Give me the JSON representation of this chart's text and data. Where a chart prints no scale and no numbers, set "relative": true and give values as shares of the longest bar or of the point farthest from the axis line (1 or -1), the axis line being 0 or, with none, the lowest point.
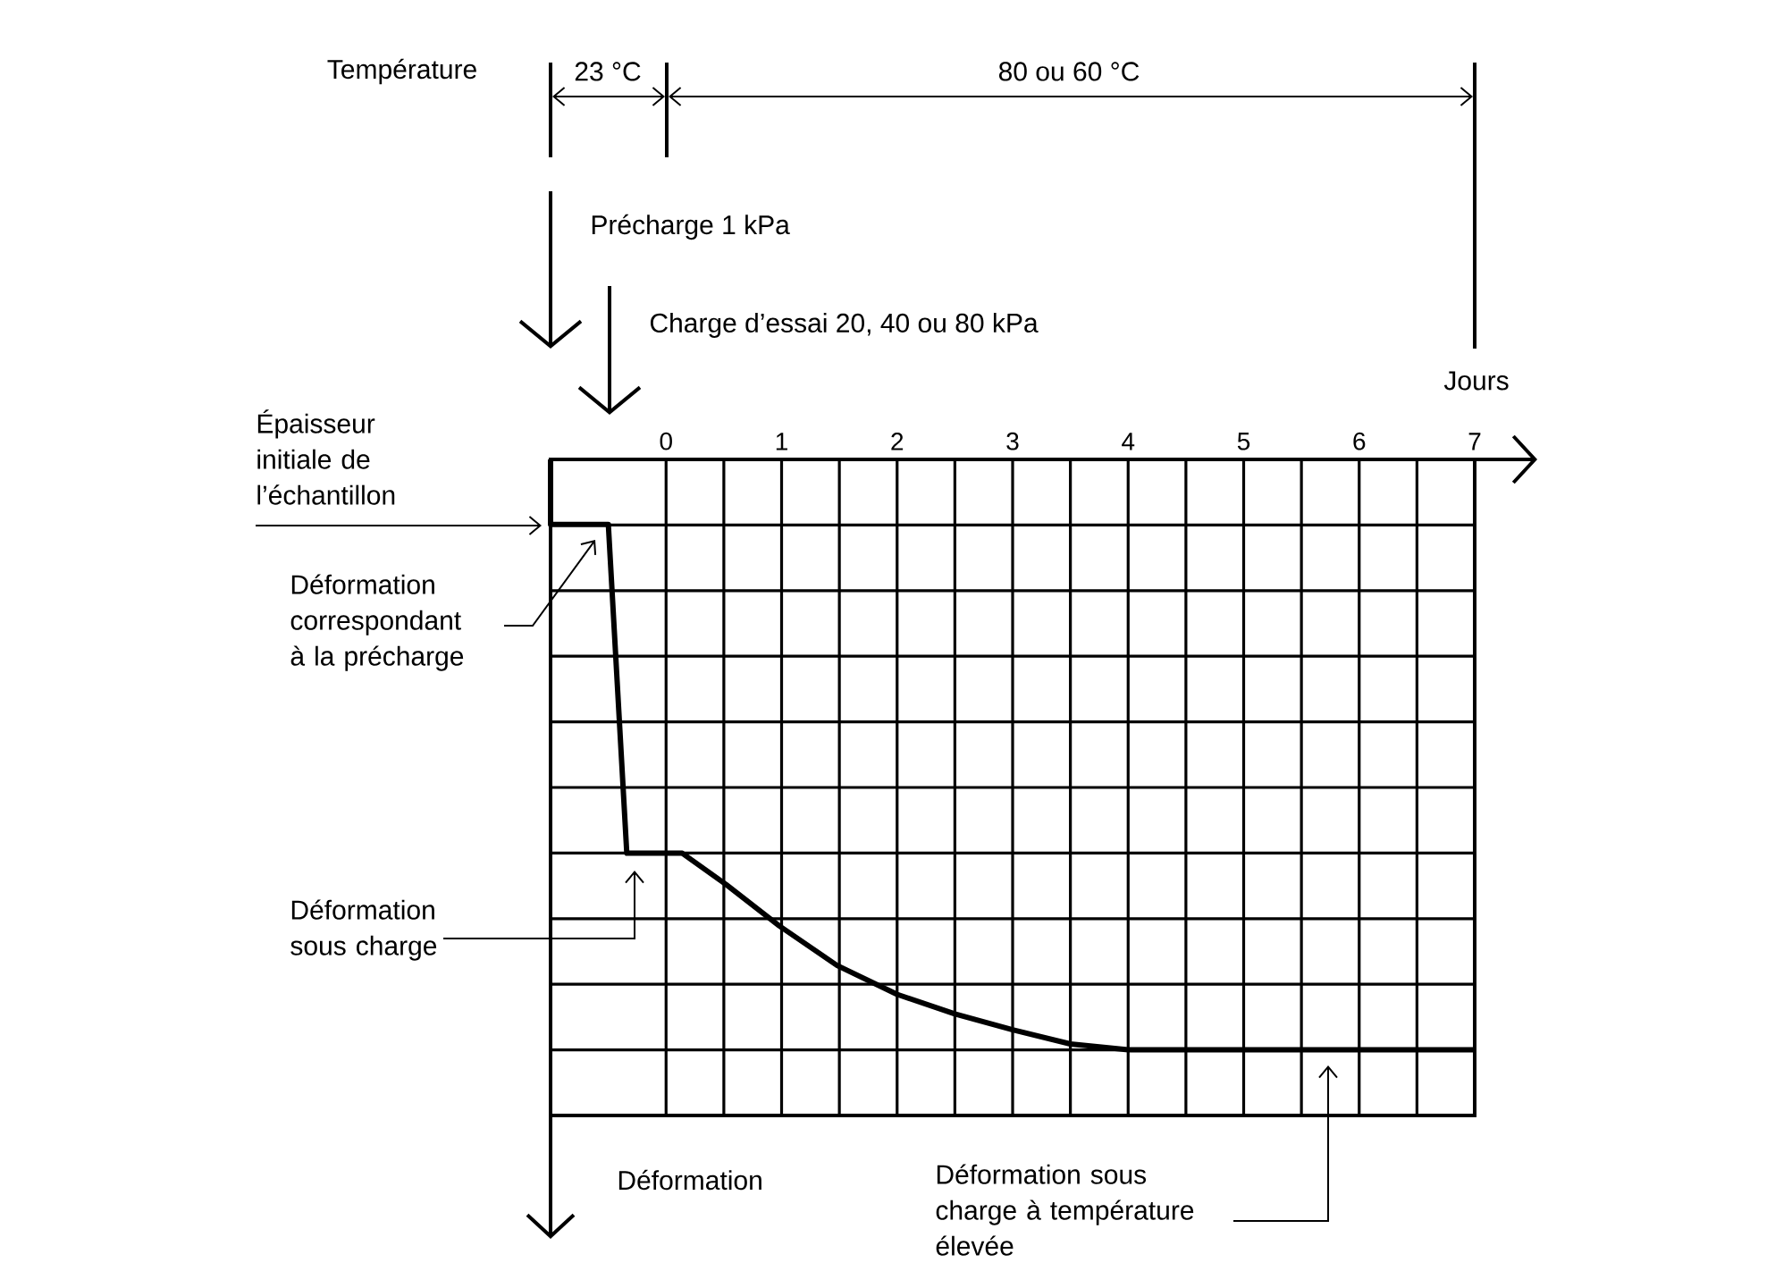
{
  "chart_data": {
    "type": "line",
    "relative": true,
    "xlabel": "Jours",
    "xlim": [
      -1,
      7
    ],
    "xticks": [
      0,
      1,
      2,
      3,
      4,
      5,
      6,
      7
    ],
    "grid": true,
    "tick_labels": "x",
    "marker": "none",
    "line_style": "solid",
    "series": [
      {
        "color": "#000000",
        "x": [
          -1,
          -1,
          -0.5,
          -0.34,
          0.14,
          0.52,
          0.98,
          1.48,
          2,
          2.5,
          3,
          3.5,
          4,
          7
        ],
        "values": [
          0,
          -0.11,
          -0.11,
          -0.667,
          -0.667,
          -0.72,
          -0.79,
          -0.857,
          -0.906,
          -0.939,
          -0.966,
          -0.99,
          -1,
          -1
        ]
      }
    ],
    "annotations": [
      "Température",
      "23 °C",
      "80 ou 60 °C",
      "Précharge 1 kPa",
      "Charge d’essai 20, 40 ou 80 kPa",
      "Épaisseur initiale de l’échantillon",
      "Déformation correspondant à la précharge",
      "Déformation sous charge",
      "Déformation sous charge à température élevée",
      "Déformation"
    ]
  }
}
